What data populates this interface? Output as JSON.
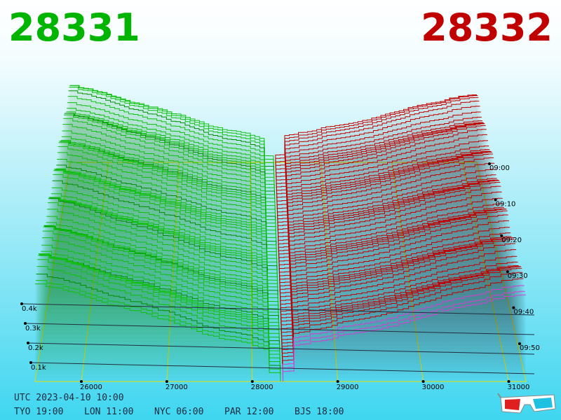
{
  "bid": "28331",
  "ask": "28332",
  "price_axis": [
    "26000",
    "27000",
    "28000",
    "29000",
    "30000",
    "31000"
  ],
  "volume_axis": [
    "0.4k",
    "0.3k",
    "0.2k",
    "0.1k"
  ],
  "time_axis": [
    "09:00",
    "09:10",
    "09:20",
    "09:30",
    "09:40",
    "09:50"
  ],
  "utc": "UTC 2023-04-10 10:00",
  "clocks": [
    "TYO 19:00",
    "LON 11:00",
    "NYC 06:00",
    "PAR 12:00",
    "BJS 18:00"
  ]
}
